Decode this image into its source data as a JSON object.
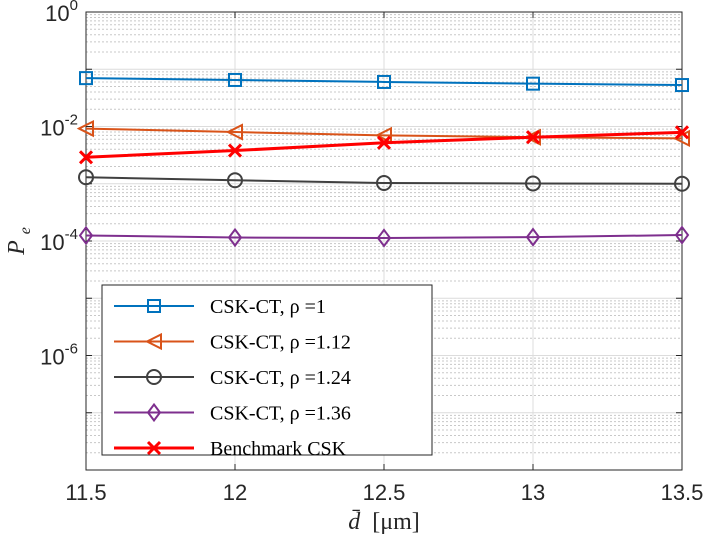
{
  "chart_data": {
    "type": "line",
    "yscale": "log",
    "x": [
      11.5,
      12,
      12.5,
      13,
      13.5
    ],
    "xlim": [
      11.5,
      13.5
    ],
    "ylim": [
      1e-08,
      1
    ],
    "xticks": [
      {
        "value": 11.5,
        "label": "11.5"
      },
      {
        "value": 12,
        "label": "12"
      },
      {
        "value": 12.5,
        "label": "12.5"
      },
      {
        "value": 13,
        "label": "13"
      },
      {
        "value": 13.5,
        "label": "13.5"
      }
    ],
    "yticks": [
      {
        "exp": 0,
        "base": "10",
        "power": "0"
      },
      {
        "exp": -2,
        "base": "10",
        "power": "-2"
      },
      {
        "exp": -4,
        "base": "10",
        "power": "-4"
      },
      {
        "exp": -6,
        "base": "10",
        "power": "-6"
      }
    ],
    "xlabel": {
      "symbol": "d̄",
      "unit": "[μm]"
    },
    "ylabel": {
      "symbol": "P",
      "sub": "e"
    },
    "grid": true,
    "legend_position": "bottom-left",
    "series": [
      {
        "name": "CSK-CT,   ρ =1",
        "color": "#0072BD",
        "marker": "square",
        "values": [
          0.07,
          0.065,
          0.06,
          0.056,
          0.053
        ]
      },
      {
        "name": "CSK-CT,   ρ =1.12",
        "color": "#D95319",
        "marker": "triangle",
        "values": [
          0.0092,
          0.008,
          0.007,
          0.0065,
          0.0062
        ]
      },
      {
        "name": "CSK-CT,   ρ =1.24",
        "color": "#404040",
        "marker": "circle",
        "values": [
          0.0013,
          0.00115,
          0.00103,
          0.00101,
          0.001
        ]
      },
      {
        "name": "CSK-CT,   ρ =1.36",
        "color": "#7E2F8E",
        "marker": "diamond",
        "values": [
          0.000125,
          0.000115,
          0.000113,
          0.000117,
          0.000127
        ]
      },
      {
        "name": "Benchmark CSK",
        "color": "#FF0000",
        "marker": "x",
        "values": [
          0.0029,
          0.0038,
          0.0052,
          0.0065,
          0.0079
        ]
      }
    ]
  }
}
